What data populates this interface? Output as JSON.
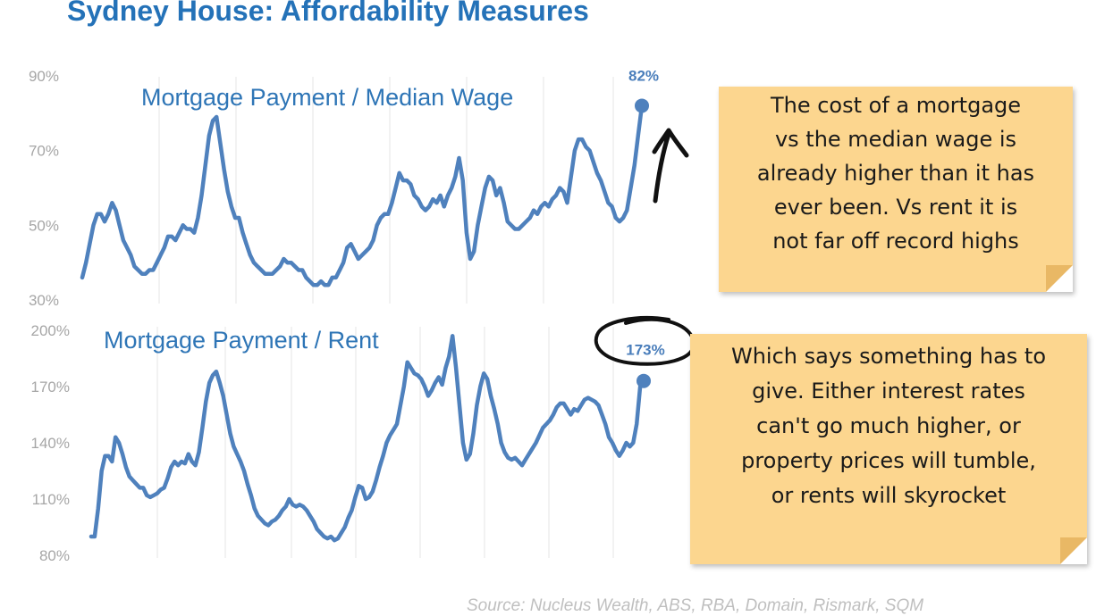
{
  "title": "Sydney House: Affordability Measures",
  "source": "Source: Nucleus Wealth, ABS, RBA, Domain, Rismark, SQM",
  "notes": {
    "note1": "The cost of a mortgage\nvs the median wage is\nalready higher than it has\never been.  Vs rent it is\nnot far off record highs",
    "note2": "Which says something has to\ngive. Either interest rates\ncan't go much higher, or\nproperty prices will tumble,\nor rents will skyrocket"
  },
  "colors": {
    "line": "#4f81bd",
    "title": "#2472b8",
    "note": "#fcd68f",
    "axis_text": "#a6a6a6"
  },
  "chart_data": [
    {
      "type": "line",
      "title": "Mortgage Payment / Median Wage",
      "ylim": [
        30,
        90
      ],
      "yticks": [
        "90%",
        "70%",
        "50%",
        "30%"
      ],
      "grid": "vertical",
      "end_label": "82%",
      "series": [
        {
          "values": [
            36,
            40,
            45,
            50,
            53,
            53,
            51,
            53,
            56,
            54,
            50,
            46,
            44,
            42,
            39,
            38,
            37,
            37,
            38,
            38,
            40,
            42,
            44,
            47,
            47,
            46,
            48,
            50,
            49,
            49,
            48,
            52,
            58,
            66,
            74,
            78,
            79,
            72,
            65,
            59,
            55,
            52,
            52,
            48,
            45,
            42,
            40,
            39,
            38,
            37,
            37,
            37,
            38,
            39,
            41,
            40,
            40,
            39,
            38,
            38,
            36,
            35,
            34,
            34,
            35,
            34,
            34,
            36,
            36,
            38,
            40,
            44,
            45,
            43,
            41,
            42,
            43,
            44,
            46,
            50,
            52,
            53,
            53,
            56,
            60,
            64,
            62,
            62,
            61,
            58,
            57,
            55,
            54,
            55,
            57,
            56,
            58,
            55,
            58,
            60,
            63,
            68,
            62,
            48,
            41,
            43,
            50,
            55,
            60,
            63,
            62,
            58,
            60,
            56,
            51,
            50,
            49,
            49,
            50,
            51,
            52,
            54,
            53,
            55,
            56,
            55,
            57,
            58,
            60,
            59,
            56,
            63,
            70,
            73,
            73,
            71,
            70,
            67,
            64,
            62,
            59,
            56,
            55,
            52,
            51,
            52,
            54,
            60,
            66,
            74,
            82
          ]
        }
      ]
    },
    {
      "type": "line",
      "title": "Mortgage Payment / Rent",
      "ylim": [
        80,
        200
      ],
      "yticks": [
        "200%",
        "170%",
        "140%",
        "110%",
        "80%"
      ],
      "grid": "vertical",
      "end_label": "173%",
      "series": [
        {
          "values": [
            90,
            90,
            105,
            125,
            133,
            133,
            130,
            143,
            140,
            134,
            127,
            122,
            120,
            118,
            116,
            116,
            112,
            111,
            112,
            113,
            115,
            116,
            121,
            127,
            130,
            128,
            130,
            129,
            134,
            130,
            128,
            135,
            148,
            162,
            172,
            176,
            178,
            172,
            165,
            155,
            145,
            138,
            134,
            130,
            125,
            118,
            112,
            105,
            101,
            99,
            97,
            96,
            98,
            99,
            101,
            104,
            106,
            110,
            107,
            106,
            107,
            106,
            104,
            101,
            98,
            94,
            92,
            90,
            89,
            90,
            88,
            89,
            92,
            95,
            100,
            104,
            111,
            117,
            116,
            110,
            111,
            114,
            120,
            127,
            133,
            140,
            144,
            147,
            150,
            160,
            170,
            183,
            180,
            177,
            176,
            174,
            170,
            165,
            168,
            172,
            175,
            171,
            180,
            186,
            197,
            180,
            160,
            140,
            131,
            134,
            145,
            160,
            170,
            177,
            174,
            165,
            158,
            150,
            140,
            135,
            132,
            131,
            132,
            130,
            128,
            131,
            134,
            137,
            140,
            144,
            148,
            150,
            152,
            155,
            159,
            161,
            161,
            158,
            155,
            158,
            157,
            160,
            163,
            164,
            163,
            162,
            160,
            155,
            150,
            143,
            140,
            136,
            133,
            136,
            140,
            138,
            140,
            150,
            170,
            173
          ]
        }
      ]
    }
  ]
}
